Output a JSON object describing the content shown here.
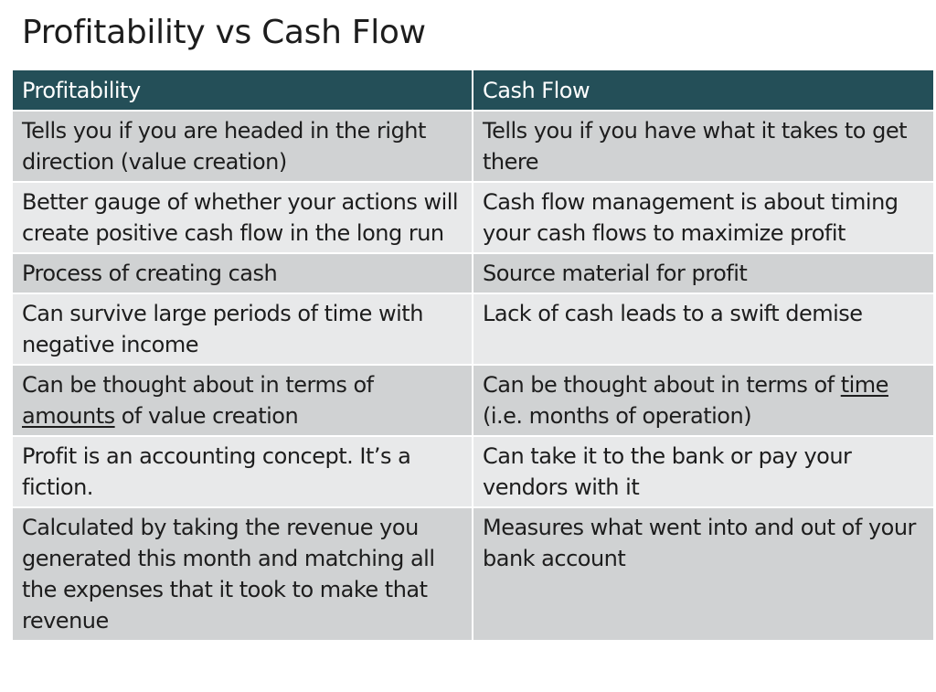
{
  "title": "Profitability vs Cash Flow",
  "headers": [
    "Profitability",
    "Cash Flow"
  ],
  "rows": [
    {
      "profitability": "Tells you if you are headed in the right direction (value creation)",
      "cash_flow": "Tells you if you have what it takes to get there"
    },
    {
      "profitability": "Better gauge of whether your actions will create positive cash flow in the long run",
      "cash_flow": "Cash flow management is about timing your cash flows to maximize profit"
    },
    {
      "profitability": "Process of creating cash",
      "cash_flow": "Source material for profit"
    },
    {
      "profitability": "Can survive large periods of time with negative income",
      "cash_flow": "Lack of cash leads to a swift demise"
    },
    {
      "profitability": {
        "before": "Can be thought about in terms of ",
        "underlined": "amounts",
        "after": " of value creation"
      },
      "cash_flow": {
        "before": "Can be thought about in terms of ",
        "underlined": "time",
        "after": " (i.e. months of operation)"
      }
    },
    {
      "profitability": "Profit is an accounting concept. It’s a fiction.",
      "cash_flow": "Can take it to the bank or pay your vendors with it"
    },
    {
      "profitability": "Calculated by taking the revenue you generated this month and matching all the expenses that it took to make that revenue",
      "cash_flow": "Measures what went into and out of your bank account"
    }
  ],
  "colors": {
    "header_bg": "#244f58",
    "header_text": "#ffffff",
    "row_dark": "#d0d2d3",
    "row_light": "#e8e9ea",
    "text": "#1d1d1d"
  }
}
